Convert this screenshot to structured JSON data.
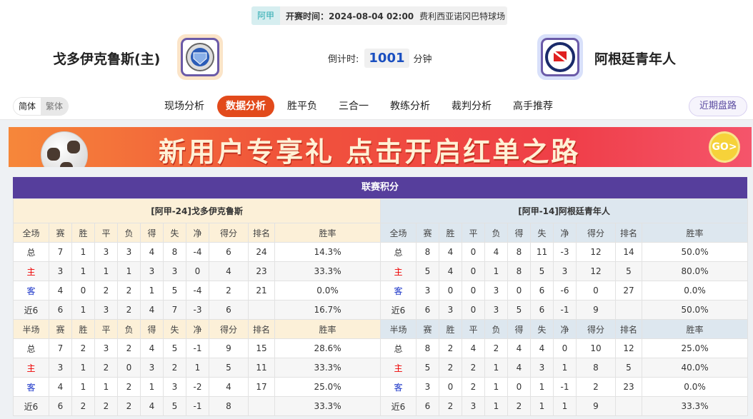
{
  "match": {
    "league": "阿甲",
    "kickoff": "开赛时间：2024-08-04 02:00",
    "venue": "费利西亚诺冈巴特球场",
    "home_team": "戈多伊克鲁斯(主)",
    "away_team": "阿根廷青年人",
    "countdown_label": "倒计时:",
    "countdown_value": "1001",
    "countdown_unit": "分钟"
  },
  "nav": {
    "lang": [
      "简体",
      "繁体"
    ],
    "tabs": [
      "现场分析",
      "数据分析",
      "胜平负",
      "三合一",
      "教练分析",
      "裁判分析",
      "高手推荐"
    ],
    "active_tab": "数据分析",
    "recent_button": "近期盘路"
  },
  "banner": {
    "text": "新用户专享礼  点击开启红单之路",
    "go": "GO>"
  },
  "standings": {
    "title": "联赛积分",
    "columns_full": [
      "全场",
      "赛",
      "胜",
      "平",
      "负",
      "得",
      "失",
      "净",
      "得分",
      "排名",
      "胜率"
    ],
    "columns_half": [
      "半场",
      "赛",
      "胜",
      "平",
      "负",
      "得",
      "失",
      "净",
      "得分",
      "排名",
      "胜率"
    ],
    "home": {
      "header": "[阿甲-24]戈多伊克鲁斯",
      "full": [
        [
          "总",
          "7",
          "1",
          "3",
          "3",
          "4",
          "8",
          "-4",
          "6",
          "24",
          "14.3%"
        ],
        [
          "主",
          "3",
          "1",
          "1",
          "1",
          "3",
          "3",
          "0",
          "4",
          "23",
          "33.3%"
        ],
        [
          "客",
          "4",
          "0",
          "2",
          "2",
          "1",
          "5",
          "-4",
          "2",
          "21",
          "0.0%"
        ],
        [
          "近6",
          "6",
          "1",
          "3",
          "2",
          "4",
          "7",
          "-3",
          "6",
          "",
          "16.7%"
        ]
      ],
      "half": [
        [
          "总",
          "7",
          "2",
          "3",
          "2",
          "4",
          "5",
          "-1",
          "9",
          "15",
          "28.6%"
        ],
        [
          "主",
          "3",
          "1",
          "2",
          "0",
          "3",
          "2",
          "1",
          "5",
          "11",
          "33.3%"
        ],
        [
          "客",
          "4",
          "1",
          "1",
          "2",
          "1",
          "3",
          "-2",
          "4",
          "17",
          "25.0%"
        ],
        [
          "近6",
          "6",
          "2",
          "2",
          "2",
          "4",
          "5",
          "-1",
          "8",
          "",
          "33.3%"
        ]
      ]
    },
    "away": {
      "header": "[阿甲-14]阿根廷青年人",
      "full": [
        [
          "总",
          "8",
          "4",
          "0",
          "4",
          "8",
          "11",
          "-3",
          "12",
          "14",
          "50.0%"
        ],
        [
          "主",
          "5",
          "4",
          "0",
          "1",
          "8",
          "5",
          "3",
          "12",
          "5",
          "80.0%"
        ],
        [
          "客",
          "3",
          "0",
          "0",
          "3",
          "0",
          "6",
          "-6",
          "0",
          "27",
          "0.0%"
        ],
        [
          "近6",
          "6",
          "3",
          "0",
          "3",
          "5",
          "6",
          "-1",
          "9",
          "",
          "50.0%"
        ]
      ],
      "half": [
        [
          "总",
          "8",
          "2",
          "4",
          "2",
          "4",
          "4",
          "0",
          "10",
          "12",
          "25.0%"
        ],
        [
          "主",
          "5",
          "2",
          "2",
          "1",
          "4",
          "3",
          "1",
          "8",
          "5",
          "40.0%"
        ],
        [
          "客",
          "3",
          "0",
          "2",
          "1",
          "0",
          "1",
          "-1",
          "2",
          "23",
          "0.0%"
        ],
        [
          "近6",
          "6",
          "2",
          "3",
          "1",
          "2",
          "1",
          "1",
          "9",
          "",
          "33.3%"
        ]
      ]
    }
  },
  "colors": {
    "accent": "#e24a1b",
    "title_bar": "#563e9c",
    "home_label": "#e00000",
    "away_label": "#1a34c8"
  }
}
